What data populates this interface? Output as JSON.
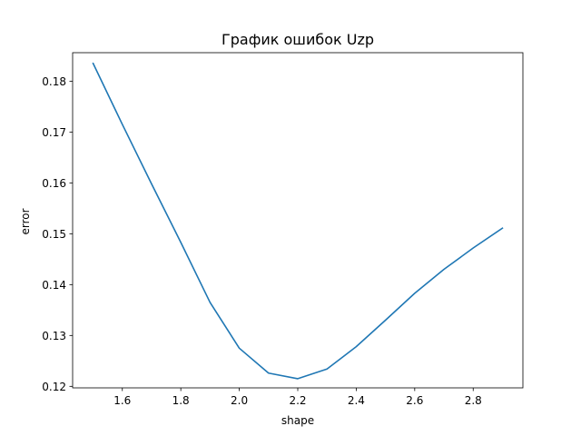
{
  "chart_data": {
    "type": "line",
    "title": "График ошибок Uzp",
    "xlabel": "shape",
    "ylabel": "error",
    "xlim": [
      1.43,
      2.97
    ],
    "ylim": [
      0.1197,
      0.1856
    ],
    "x_ticks": [
      {
        "value": 1.6,
        "label": "1.6"
      },
      {
        "value": 1.8,
        "label": "1.8"
      },
      {
        "value": 2.0,
        "label": "2.0"
      },
      {
        "value": 2.2,
        "label": "2.2"
      },
      {
        "value": 2.4,
        "label": "2.4"
      },
      {
        "value": 2.6,
        "label": "2.6"
      },
      {
        "value": 2.8,
        "label": "2.8"
      }
    ],
    "y_ticks": [
      {
        "value": 0.12,
        "label": "0.12"
      },
      {
        "value": 0.13,
        "label": "0.13"
      },
      {
        "value": 0.14,
        "label": "0.14"
      },
      {
        "value": 0.15,
        "label": "0.15"
      },
      {
        "value": 0.16,
        "label": "0.16"
      },
      {
        "value": 0.17,
        "label": "0.17"
      },
      {
        "value": 0.18,
        "label": "0.18"
      }
    ],
    "grid": false,
    "series": [
      {
        "color": "#1f77b4",
        "x": [
          1.5,
          1.6,
          1.7,
          1.8,
          1.9,
          2.0,
          2.1,
          2.2,
          2.3,
          2.4,
          2.5,
          2.6,
          2.7,
          2.8,
          2.9
        ],
        "y": [
          0.1835,
          0.1715,
          0.1598,
          0.1483,
          0.1365,
          0.1275,
          0.1226,
          0.1215,
          0.1234,
          0.1278,
          0.133,
          0.1383,
          0.143,
          0.1472,
          0.1511
        ]
      }
    ]
  }
}
